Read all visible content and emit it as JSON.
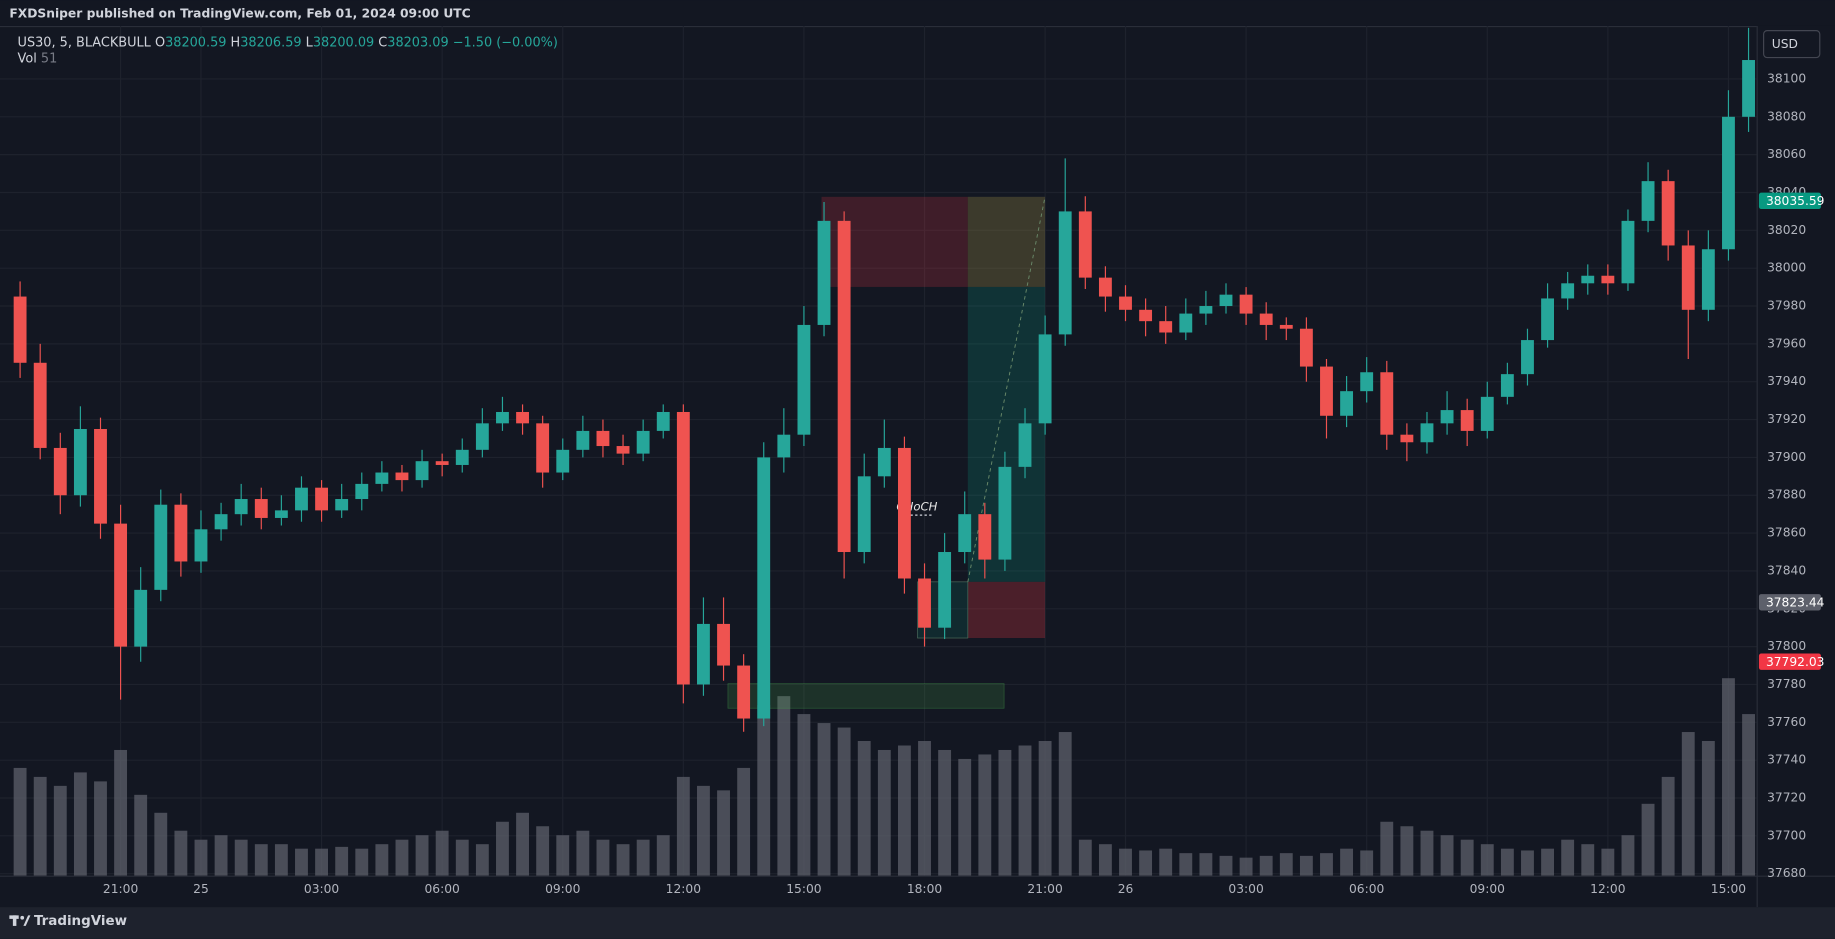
{
  "header": {
    "publisher": "FXDSniper published on TradingView.com, Feb 01, 2024 09:00 UTC"
  },
  "chart_data": {
    "type": "candlestick",
    "legend": {
      "symbol": "US30, 5, BLACKBULL",
      "o_label": "O",
      "open": 38200.59,
      "h_label": "H",
      "high": 38206.59,
      "l_label": "L",
      "low": 38200.09,
      "c_label": "C",
      "close": 38203.09,
      "change": "−1.50 (−0.00%)",
      "volume_label": "Vol",
      "volume": 51
    },
    "currency": "USD",
    "x": [
      18.5,
      19,
      19.5,
      20,
      20.5,
      21,
      21.5,
      22,
      22.5,
      23,
      23.5,
      24,
      24.5,
      25,
      25.5,
      26,
      26.5,
      27,
      27.5,
      28,
      28.5,
      29,
      29.5,
      30,
      30.5,
      31,
      31.5,
      32,
      32.5,
      33,
      33.5,
      34,
      34.5,
      35,
      35.5,
      36,
      36.5,
      37,
      37.5,
      38,
      38.5,
      39,
      39.5,
      40,
      40.5,
      41,
      41.5,
      42,
      42.5,
      43,
      43.5,
      44,
      44.5,
      45,
      45.5,
      46,
      46.5,
      47,
      47.5,
      48,
      48.5,
      49,
      49.5,
      50,
      50.5,
      51,
      51.5,
      52,
      52.5,
      53,
      53.5,
      54,
      54.5,
      55,
      55.5,
      56,
      56.5,
      57,
      57.5,
      58,
      58.5,
      59,
      59.5,
      60,
      60.5,
      61,
      61.5
    ],
    "open": [
      37985,
      37950,
      37905,
      37880,
      37915,
      37865,
      37800,
      37830,
      37875,
      37845,
      37862,
      37870,
      37878,
      37868,
      37872,
      37884,
      37872,
      37878,
      37886,
      37892,
      37888,
      37898,
      37896,
      37904,
      37918,
      37924,
      37918,
      37892,
      37904,
      37914,
      37906,
      37902,
      37914,
      37924,
      37780,
      37812,
      37790,
      37762,
      37900,
      37912,
      37970,
      38025,
      37850,
      37890,
      37905,
      37836,
      37810,
      37850,
      37870,
      37846,
      37895,
      37918,
      37965,
      38030,
      37995,
      37985,
      37978,
      37972,
      37966,
      37976,
      37980,
      37986,
      37976,
      37970,
      37968,
      37948,
      37922,
      37935,
      37945,
      37912,
      37908,
      37918,
      37925,
      37914,
      37932,
      37944,
      37962,
      37984,
      37992,
      37996,
      37992,
      38025,
      38046,
      38012,
      37978,
      38010,
      38080
    ],
    "high": [
      37993,
      37960,
      37913,
      37927,
      37921,
      37875,
      37842,
      37883,
      37881,
      37872,
      37876,
      37886,
      37884,
      37880,
      37890,
      37888,
      37886,
      37892,
      37898,
      37896,
      37904,
      37902,
      37910,
      37926,
      37932,
      37928,
      37922,
      37910,
      37922,
      37920,
      37912,
      37920,
      37928,
      37928,
      37826,
      37826,
      37796,
      37908,
      37926,
      37980,
      38035,
      38030,
      37902,
      37920,
      37911,
      37844,
      37860,
      37882,
      37876,
      37903,
      37926,
      37975,
      38058,
      38038,
      38001,
      37991,
      37984,
      37980,
      37984,
      37988,
      37992,
      37990,
      37982,
      37974,
      37974,
      37952,
      37943,
      37953,
      37951,
      37918,
      37924,
      37935,
      37931,
      37940,
      37950,
      37968,
      37992,
      37998,
      38002,
      38002,
      38031,
      38056,
      38052,
      38020,
      38020,
      38094,
      38127
    ],
    "low": [
      37942,
      37899,
      37870,
      37874,
      37857,
      37772,
      37792,
      37824,
      37837,
      37839,
      37856,
      37864,
      37862,
      37864,
      37866,
      37866,
      37868,
      37872,
      37882,
      37882,
      37884,
      37890,
      37892,
      37900,
      37914,
      37912,
      37884,
      37888,
      37900,
      37900,
      37896,
      37898,
      37910,
      37770,
      37774,
      37782,
      37755,
      37758,
      37892,
      37906,
      37964,
      37836,
      37844,
      37884,
      37828,
      37800,
      37804,
      37844,
      37836,
      37840,
      37889,
      37912,
      37959,
      37989,
      37977,
      37972,
      37964,
      37960,
      37962,
      37970,
      37976,
      37970,
      37962,
      37962,
      37940,
      37910,
      37916,
      37929,
      37904,
      37898,
      37902,
      37912,
      37906,
      37910,
      37928,
      37938,
      37958,
      37978,
      37986,
      37986,
      37988,
      38019,
      38004,
      37952,
      37972,
      38004,
      38072
    ],
    "close": [
      37950,
      37905,
      37880,
      37915,
      37865,
      37800,
      37830,
      37875,
      37845,
      37862,
      37870,
      37878,
      37868,
      37872,
      37884,
      37872,
      37878,
      37886,
      37892,
      37888,
      37898,
      37896,
      37904,
      37918,
      37924,
      37918,
      37892,
      37904,
      37914,
      37906,
      37902,
      37914,
      37924,
      37780,
      37812,
      37790,
      37762,
      37900,
      37912,
      37970,
      38025,
      37850,
      37890,
      37905,
      37836,
      37810,
      37850,
      37870,
      37846,
      37895,
      37918,
      37965,
      38030,
      37995,
      37985,
      37978,
      37972,
      37966,
      37976,
      37980,
      37986,
      37976,
      37970,
      37968,
      37948,
      37922,
      37935,
      37945,
      37912,
      37908,
      37918,
      37925,
      37914,
      37932,
      37944,
      37962,
      37984,
      37992,
      37996,
      37992,
      38025,
      38046,
      38012,
      37978,
      38010,
      38080,
      38110
    ],
    "volume": [
      120,
      110,
      100,
      115,
      105,
      140,
      90,
      70,
      50,
      40,
      45,
      40,
      35,
      35,
      30,
      30,
      32,
      30,
      35,
      40,
      45,
      50,
      40,
      35,
      60,
      70,
      55,
      45,
      50,
      40,
      35,
      40,
      45,
      110,
      100,
      95,
      120,
      190,
      200,
      180,
      170,
      165,
      150,
      140,
      145,
      150,
      140,
      130,
      135,
      140,
      145,
      150,
      160,
      40,
      35,
      30,
      28,
      30,
      25,
      25,
      22,
      20,
      22,
      25,
      22,
      25,
      30,
      28,
      60,
      55,
      50,
      45,
      40,
      35,
      30,
      28,
      30,
      40,
      35,
      30,
      45,
      80,
      110,
      160,
      150,
      220,
      180
    ],
    "up_color": "#26a69a",
    "down_color": "#ef5350",
    "volume_color": "#5d606b",
    "xlim": [
      18,
      61.7
    ],
    "xticks": [
      {
        "value": 21,
        "label": "21:00"
      },
      {
        "value": 23,
        "label": "25"
      },
      {
        "value": 26,
        "label": "03:00"
      },
      {
        "value": 29,
        "label": "06:00"
      },
      {
        "value": 32,
        "label": "09:00"
      },
      {
        "value": 35,
        "label": "12:00"
      },
      {
        "value": 38,
        "label": "15:00"
      },
      {
        "value": 41,
        "label": "18:00"
      },
      {
        "value": 44,
        "label": "21:00"
      },
      {
        "value": 46,
        "label": "26"
      },
      {
        "value": 49,
        "label": "03:00"
      },
      {
        "value": 52,
        "label": "06:00"
      },
      {
        "value": 55,
        "label": "09:00"
      },
      {
        "value": 58,
        "label": "12:00"
      },
      {
        "value": 61,
        "label": "15:00"
      }
    ],
    "ylim": [
      37679,
      38128
    ],
    "yticks": [
      37680,
      37700,
      37720,
      37740,
      37760,
      37780,
      37800,
      37820,
      37840,
      37860,
      37880,
      37900,
      37920,
      37940,
      37960,
      37980,
      38000,
      38020,
      38040,
      38060,
      38080,
      38100
    ],
    "vlim": [
      0,
      300
    ],
    "grid": true,
    "price_marks": [
      {
        "value": 38035.59,
        "color": "#089981"
      },
      {
        "value": 37823.44,
        "color": "#5d606b"
      },
      {
        "value": 37792.03,
        "color": "#f23645"
      }
    ],
    "annotations": [
      {
        "text": "CHoCH"
      }
    ]
  },
  "footer": {
    "brand": "TradingView"
  }
}
